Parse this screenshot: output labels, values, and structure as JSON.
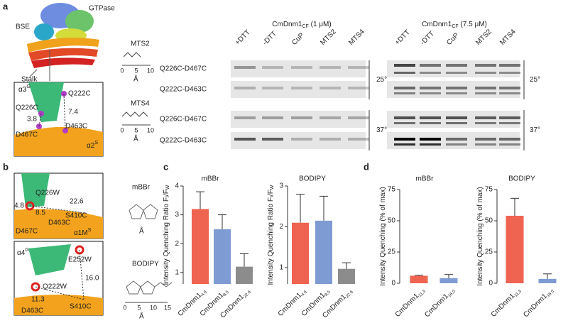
{
  "panel_a": {
    "letter": "a",
    "structure": {
      "bse": "BSE",
      "gtpase": "GTPase",
      "stalk": "Stalk"
    },
    "zoom": {
      "helix1": {
        "main": "α3",
        "sup": "G"
      },
      "helix2": {
        "main": "α2",
        "sup": "S"
      },
      "residues": [
        "Q222C",
        "Q226C",
        "D467C",
        "D463C"
      ],
      "distances": [
        "3.8",
        "7.4"
      ]
    },
    "reagents": [
      {
        "name": "MTS2",
        "scale": [
          "0",
          "5",
          "10"
        ],
        "unit": "Å"
      },
      {
        "name": "MTS4",
        "scale": [
          "0",
          "5",
          "10"
        ],
        "unit": "Å"
      }
    ],
    "gels": [
      {
        "title": {
          "name": "CmDnm1",
          "sub": "CF",
          "conc": " (1 μM)"
        },
        "lanes": [
          "+DTT",
          "-DTT",
          "CuP",
          "MTS2",
          "MTS4"
        ],
        "rows": [
          "Q226C-D467C",
          "Q222C-D463C",
          "Q226C-D467C",
          "Q222C-D463C"
        ],
        "temperatures": [
          "25°",
          "37°"
        ]
      },
      {
        "title": {
          "name": "CmDnm1",
          "sub": "CF",
          "conc": " (7.5 μM)"
        },
        "lanes": [
          "+DTT",
          "-DTT",
          "CuP",
          "MTS2",
          "MTS4"
        ],
        "temperatures": [
          "25°",
          "37°"
        ]
      }
    ]
  },
  "panel_b": {
    "letter": "b",
    "top": {
      "helix": {
        "main": "α1M",
        "sup": "S"
      },
      "residues": [
        "Q226W",
        "S410C",
        "D467C",
        "D463C"
      ],
      "distances": [
        "4.8",
        "22.6",
        "8.5"
      ]
    },
    "bottom": {
      "helix": {
        "main": "α4",
        "sup": "G"
      },
      "residues": [
        "E252W",
        "Q222W",
        "S410C",
        "D463C"
      ],
      "distances": [
        "16.0",
        "11.3"
      ]
    },
    "reagents": [
      {
        "name": "mBBr",
        "unit": "Å"
      },
      {
        "name": "BODIPY",
        "scale": [
          "0",
          "5",
          "10",
          "15"
        ],
        "unit": "Å"
      }
    ]
  },
  "panel_c": {
    "letter": "c"
  },
  "panel_d": {
    "letter": "d"
  },
  "chart_data": [
    {
      "type": "bar",
      "title": "mBBr",
      "y_label": {
        "text": "Intensity Quenching Ratio F",
        "sub1": "I",
        "slash": "/F",
        "sub2": "W"
      },
      "categories": [
        {
          "name": "CmDnm1",
          "sub": "4.8"
        },
        {
          "name": "CmDnm1",
          "sub": "8.5"
        },
        {
          "name": "CmDnm1",
          "sub": "22.6"
        }
      ],
      "values": [
        3.2,
        2.5,
        1.2
      ],
      "errors": [
        0.6,
        0.5,
        0.45
      ],
      "colors": [
        "#ef6351",
        "#7f9bd3",
        "#8c8c8c"
      ],
      "ylim": [
        0.6,
        4
      ],
      "yticks": [
        1,
        2,
        3,
        4
      ]
    },
    {
      "type": "bar",
      "title": "BODIPY",
      "y_label": {
        "text": "Intensity Quenching Ratio F",
        "sub1": "I",
        "slash": "/F",
        "sub2": "W"
      },
      "categories": [
        {
          "name": "CmDnm1",
          "sub": "4.8"
        },
        {
          "name": "CmDnm1",
          "sub": "8.5"
        },
        {
          "name": "CmDnm1",
          "sub": "22.6"
        }
      ],
      "values": [
        2.1,
        2.15,
        0.97
      ],
      "errors": [
        0.7,
        0.6,
        0.15
      ],
      "colors": [
        "#ef6351",
        "#7f9bd3",
        "#8c8c8c"
      ],
      "ylim": [
        0.6,
        3
      ],
      "yticks": [
        1,
        2,
        3
      ]
    },
    {
      "type": "bar",
      "title": "mBBr",
      "y_label": {
        "text": "Intensity Quenching (% of max)"
      },
      "categories": [
        {
          "name": "CmDnm1",
          "sub": "11.3"
        },
        {
          "name": "CmDnm1",
          "sub": "16.0"
        }
      ],
      "values": [
        6,
        4
      ],
      "errors": [
        0.5,
        3
      ],
      "colors": [
        "#ef6351",
        "#7f9bd3"
      ],
      "ylim": [
        0,
        75
      ],
      "yticks": [
        0,
        25,
        50,
        75
      ]
    },
    {
      "type": "bar",
      "title": "BODIPY",
      "y_label": {
        "text": "Intensity Quenching (% of max)"
      },
      "categories": [
        {
          "name": "CmDnm1",
          "sub": "11.3"
        },
        {
          "name": "CmDnm1",
          "sub": "16.0"
        }
      ],
      "values": [
        54,
        3.5
      ],
      "errors": [
        14,
        4
      ],
      "colors": [
        "#ef6351",
        "#7f9bd3"
      ],
      "ylim": [
        0,
        75
      ],
      "yticks": [
        0,
        25,
        50,
        75
      ]
    }
  ]
}
